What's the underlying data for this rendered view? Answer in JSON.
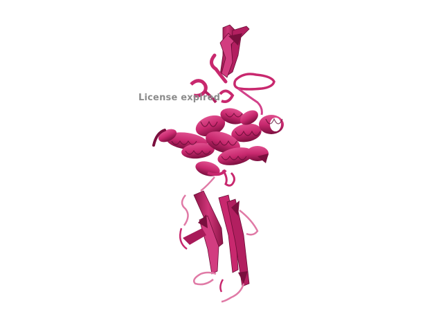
{
  "watermark": {
    "text": "License expired"
  },
  "structure": {
    "representation": "cartoon",
    "colors": {
      "main": "#c8286e",
      "dark": "#7a0f3e",
      "light": "#e07aa6",
      "background": "#ffffff"
    }
  }
}
